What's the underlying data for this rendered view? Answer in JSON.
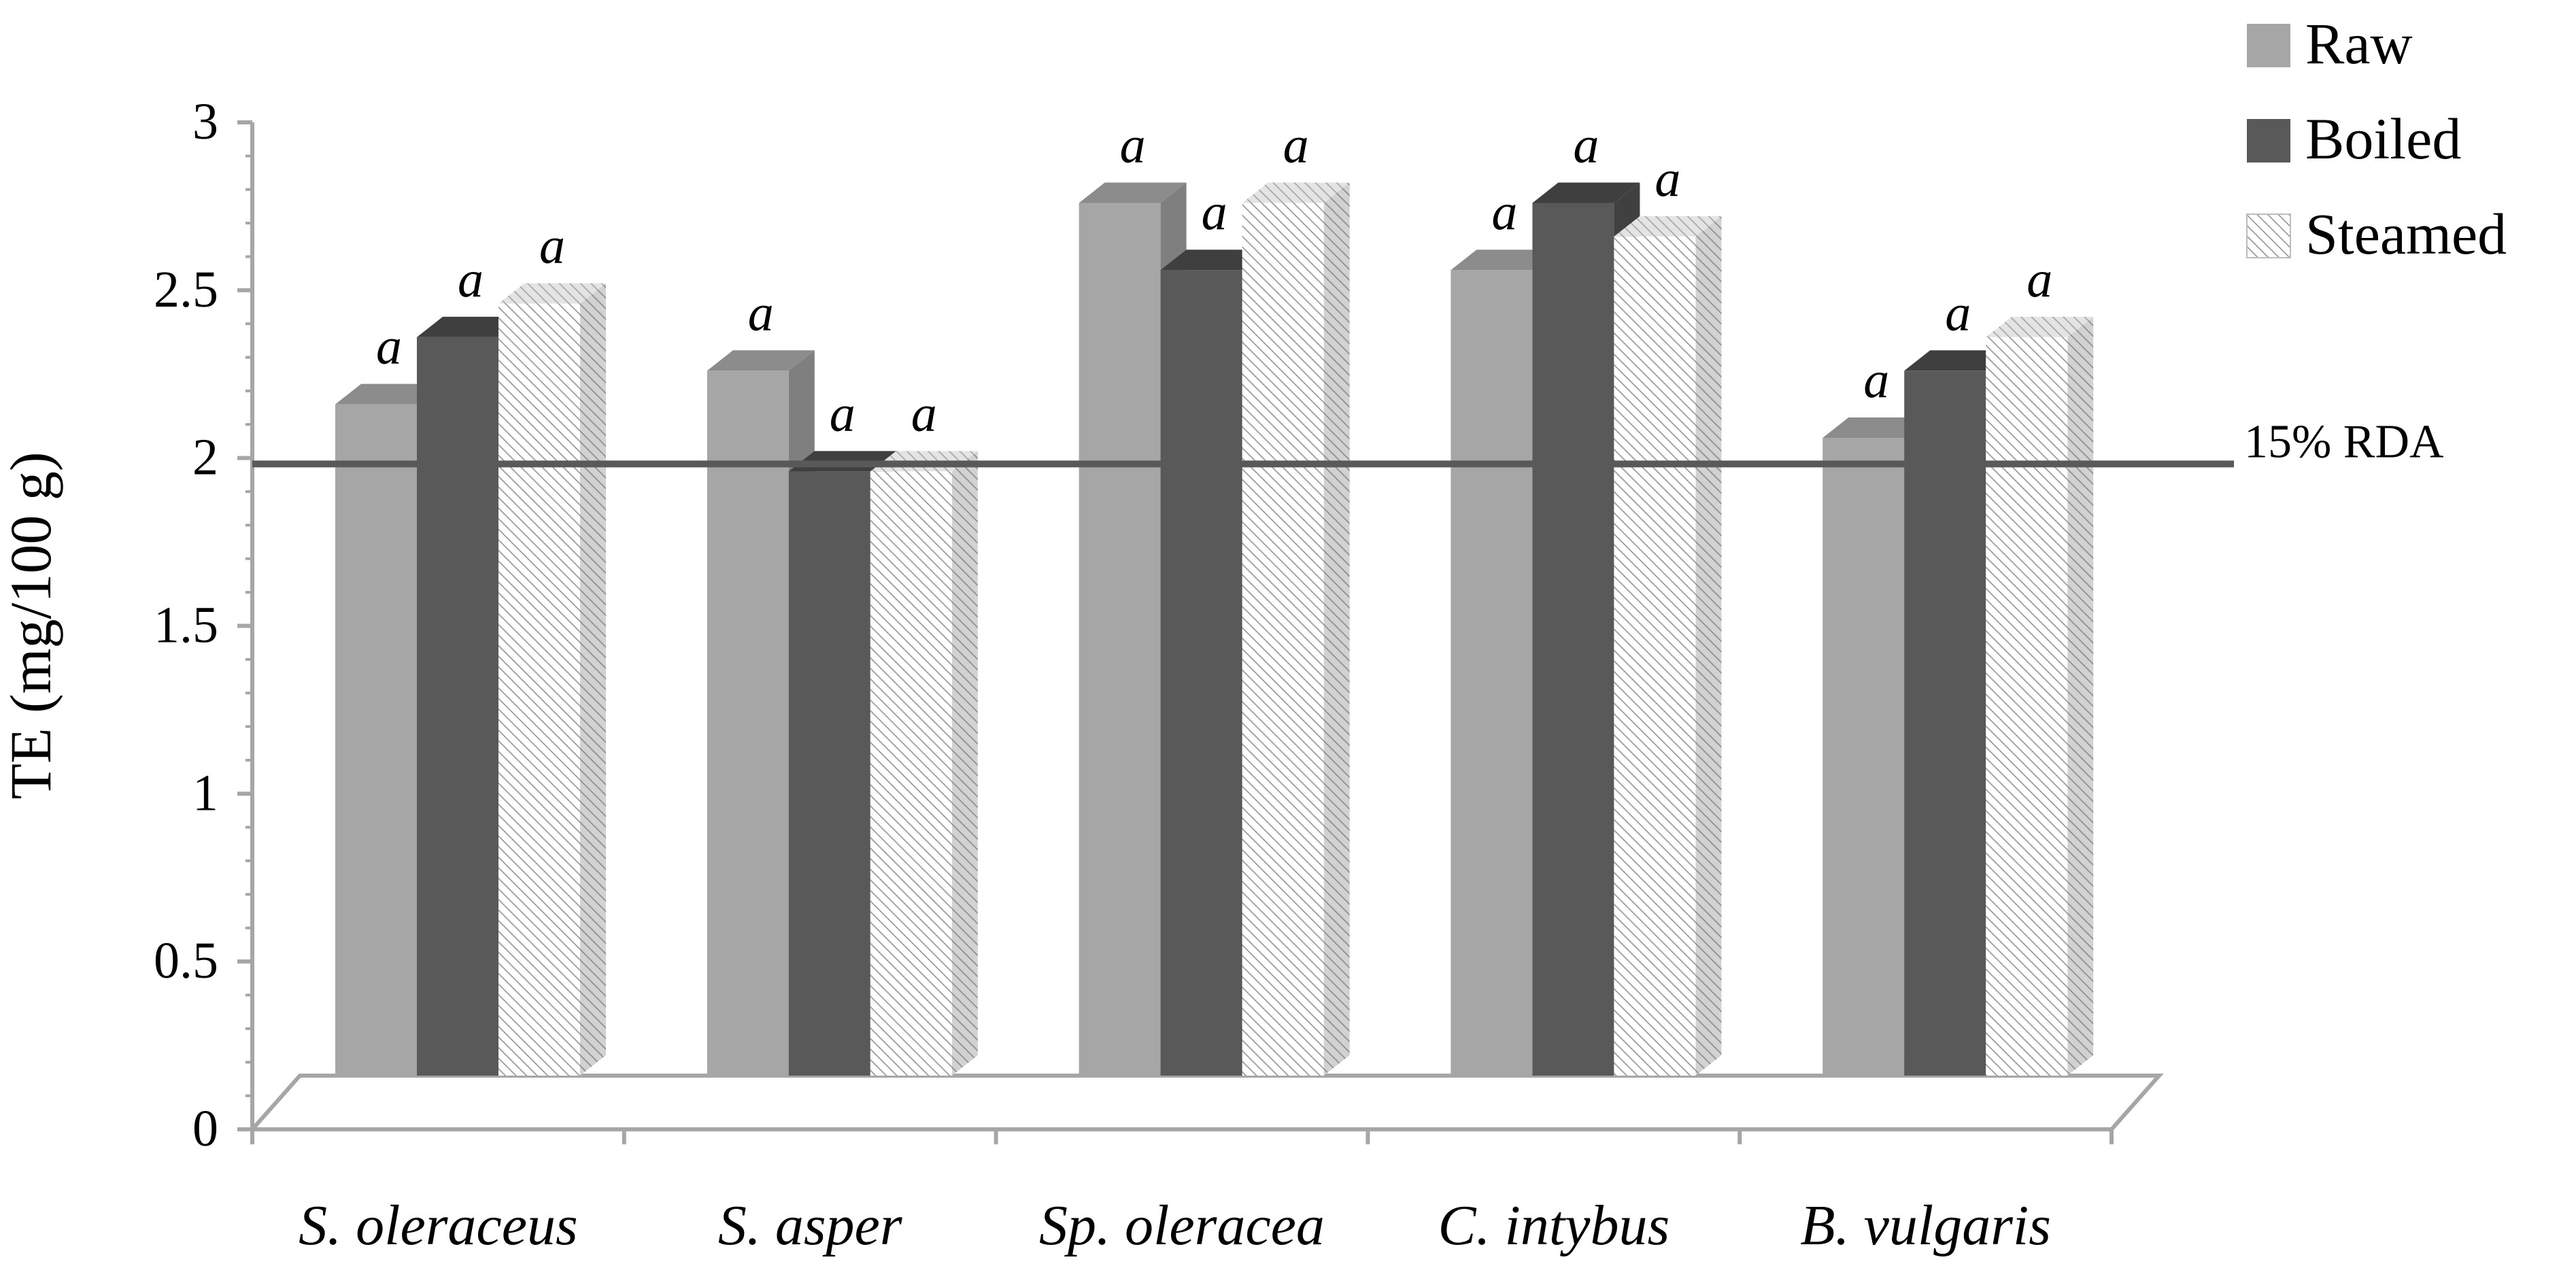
{
  "chart_data": {
    "type": "bar",
    "style": "3d-clustered-column",
    "title": "",
    "xlabel": "",
    "ylabel": "TE (mg/100 g)",
    "ylim": [
      0,
      3
    ],
    "y_ticks": [
      0,
      0.5,
      1,
      1.5,
      2,
      2.5,
      3
    ],
    "y_tick_labels": [
      "0",
      "0.5",
      "1",
      "1.5",
      "2",
      "2.5",
      "3"
    ],
    "categories": [
      "S. oleraceus",
      "S. asper",
      "Sp. oleracea",
      "C. intybus",
      "B. vulgaris"
    ],
    "series": [
      {
        "name": "Raw",
        "values": [
          2.0,
          2.1,
          2.6,
          2.4,
          1.9
        ],
        "labels": [
          "a",
          "a",
          "a",
          "a",
          "a"
        ],
        "color": "#a6a6a6",
        "top_color": "#8c8c8c",
        "side_color": "#7f7f7f",
        "pattern": "solid"
      },
      {
        "name": "Boiled",
        "values": [
          2.2,
          1.8,
          2.4,
          2.6,
          2.1
        ],
        "labels": [
          "a",
          "a",
          "a",
          "a",
          "a"
        ],
        "color": "#595959",
        "top_color": "#3f3f3f",
        "side_color": "#404040",
        "pattern": "solid"
      },
      {
        "name": "Steamed",
        "values": [
          2.3,
          1.8,
          2.6,
          2.5,
          2.2
        ],
        "labels": [
          "a",
          "a",
          "a",
          "a",
          "a"
        ],
        "color": "#ffffff",
        "top_color": "#d0d0d0",
        "side_color": "#bdbdbd",
        "pattern": "diagonal-hatch"
      }
    ],
    "reference_line": {
      "label": "15% RDA",
      "value": 1.8,
      "color": "#595959"
    },
    "legend": {
      "position": "top-right",
      "entries": [
        "Raw",
        "Boiled",
        "Steamed"
      ]
    },
    "grid": false
  }
}
